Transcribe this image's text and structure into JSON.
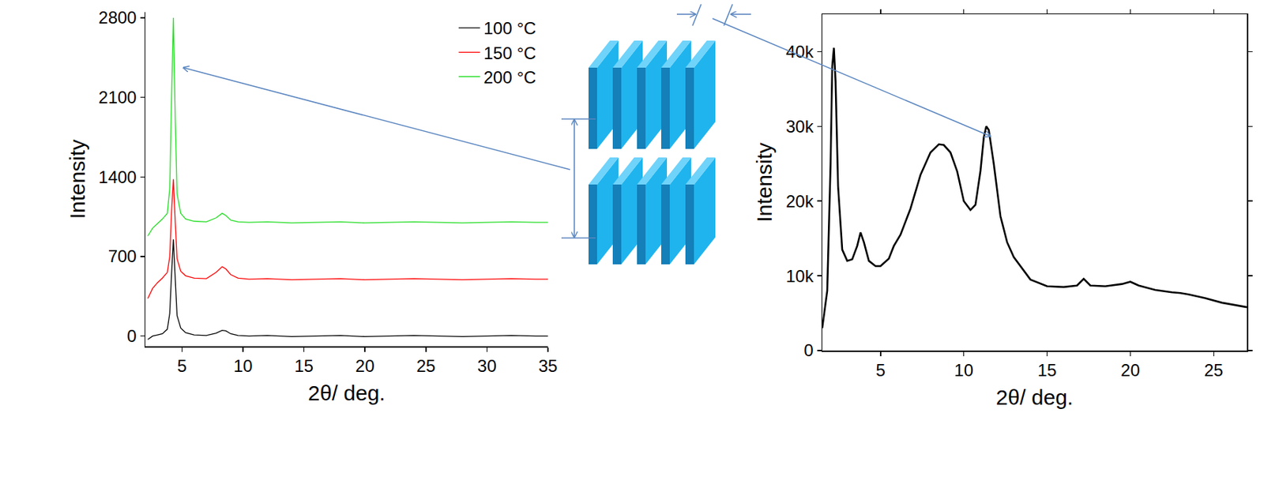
{
  "chart_data": [
    {
      "type": "line",
      "x_label": "2θ/ deg.",
      "y_label": "Intensity",
      "xlim": [
        2,
        35
      ],
      "xticks": [
        5,
        10,
        15,
        20,
        25,
        30,
        35
      ],
      "ylim": [
        -90,
        2850
      ],
      "yticks": [
        0,
        700,
        1400,
        2100,
        2800
      ],
      "grid": false,
      "legend": "upper right",
      "x": [
        2.2,
        2.6,
        3.0,
        3.4,
        3.8,
        4.0,
        4.15,
        4.3,
        4.45,
        4.6,
        4.9,
        5.3,
        6.0,
        7.0,
        7.8,
        8.3,
        8.6,
        9.0,
        9.6,
        10.5,
        12,
        14,
        16,
        18,
        20,
        22,
        24,
        26,
        28,
        30,
        32,
        34,
        35
      ],
      "series": [
        {
          "name": "100 °C",
          "color": "#000000",
          "values": [
            -30,
            0,
            10,
            20,
            60,
            200,
            550,
            850,
            500,
            180,
            70,
            30,
            10,
            5,
            25,
            50,
            45,
            20,
            5,
            0,
            5,
            -5,
            0,
            5,
            -5,
            0,
            5,
            0,
            -5,
            0,
            5,
            0,
            0
          ]
        },
        {
          "name": "150 °C",
          "color": "#ff0000",
          "values": [
            330,
            420,
            470,
            510,
            560,
            700,
            1100,
            1380,
            1000,
            680,
            570,
            530,
            510,
            505,
            560,
            610,
            590,
            540,
            510,
            500,
            505,
            495,
            500,
            505,
            495,
            500,
            505,
            500,
            495,
            500,
            505,
            500,
            500
          ]
        },
        {
          "name": "200 °C",
          "color": "#22dd22",
          "values": [
            880,
            950,
            990,
            1030,
            1080,
            1300,
            2100,
            2800,
            1900,
            1250,
            1080,
            1030,
            1010,
            1005,
            1040,
            1080,
            1060,
            1020,
            1005,
            1000,
            1005,
            995,
            1000,
            1005,
            995,
            1000,
            1005,
            1000,
            995,
            1000,
            1005,
            1000,
            1000
          ]
        }
      ]
    },
    {
      "type": "line",
      "x_label": "2θ/ deg.",
      "y_label": "Intensity",
      "xlim": [
        1.5,
        27
      ],
      "xticks": [
        5,
        10,
        15,
        20,
        25
      ],
      "ylim": [
        0,
        45000
      ],
      "yticks": [
        0,
        {
          "value": 10000,
          "label": "10k"
        },
        {
          "value": 20000,
          "label": "20k"
        },
        {
          "value": 30000,
          "label": "30k"
        },
        {
          "value": 40000,
          "label": "40k"
        }
      ],
      "grid": false,
      "color": "#000000",
      "x": [
        1.5,
        1.8,
        2.0,
        2.1,
        2.2,
        2.3,
        2.45,
        2.7,
        3.0,
        3.3,
        3.6,
        3.8,
        4.0,
        4.3,
        4.7,
        5.0,
        5.5,
        5.8,
        6.2,
        6.8,
        7.4,
        8.0,
        8.5,
        8.8,
        9.2,
        9.6,
        10.0,
        10.4,
        10.7,
        11.0,
        11.2,
        11.35,
        11.5,
        11.8,
        12.2,
        12.6,
        13.0,
        13.5,
        14.0,
        15.0,
        16.0,
        16.8,
        17.2,
        17.6,
        18.5,
        19.5,
        20.0,
        20.5,
        21.5,
        22.5,
        23.0,
        23.5,
        24.5,
        25.5,
        27.0
      ],
      "values": [
        3000,
        8000,
        25000,
        38000,
        40500,
        36000,
        22000,
        13500,
        12000,
        12200,
        14000,
        15800,
        14500,
        12000,
        11300,
        11300,
        12300,
        14000,
        15500,
        19000,
        23500,
        26500,
        27600,
        27500,
        26500,
        24000,
        20000,
        18800,
        19500,
        24000,
        28500,
        30000,
        29500,
        25000,
        18000,
        14500,
        12500,
        11000,
        9500,
        8600,
        8500,
        8700,
        9600,
        8700,
        8600,
        8900,
        9200,
        8700,
        8100,
        7800,
        7700,
        7500,
        7000,
        6400,
        5800
      ]
    }
  ]
}
